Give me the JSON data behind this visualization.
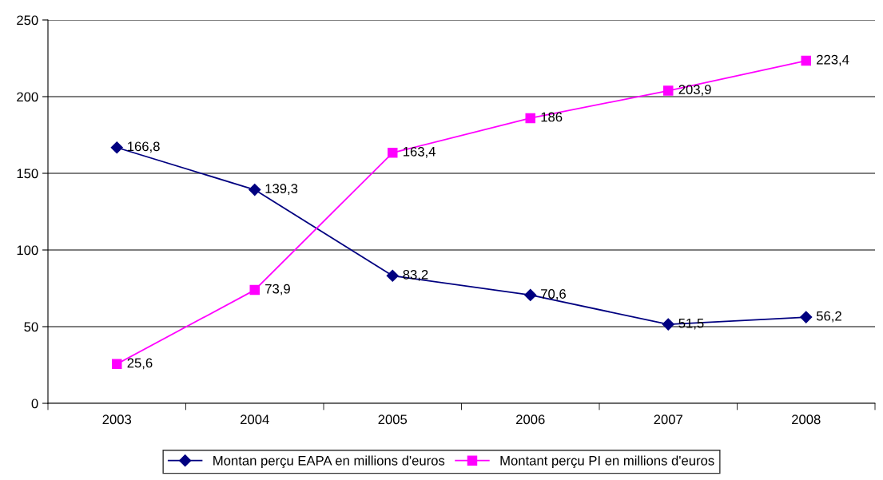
{
  "chart_data": {
    "type": "line",
    "categories": [
      "2003",
      "2004",
      "2005",
      "2006",
      "2007",
      "2008"
    ],
    "series": [
      {
        "name": "Montan perçu EAPA en millions d'euros",
        "color": "#000080",
        "marker": "diamond",
        "values": [
          166.8,
          139.3,
          83.2,
          70.6,
          51.5,
          56.2
        ],
        "value_labels": [
          "166,8",
          "139,3",
          "83,2",
          "70,6",
          "51,5",
          "56,2"
        ]
      },
      {
        "name": "Montant perçu PI en millions d'euros",
        "color": "#ff00ff",
        "marker": "square",
        "values": [
          25.6,
          73.9,
          163.4,
          186,
          203.9,
          223.4
        ],
        "value_labels": [
          "25,6",
          "73,9",
          "163,4",
          "186",
          "203,9",
          "223,4"
        ]
      }
    ],
    "ylim": [
      0,
      250
    ],
    "yticks": [
      0,
      50,
      100,
      150,
      200,
      250
    ],
    "grid": "y",
    "legend": "bottom",
    "line_style": "solid"
  }
}
